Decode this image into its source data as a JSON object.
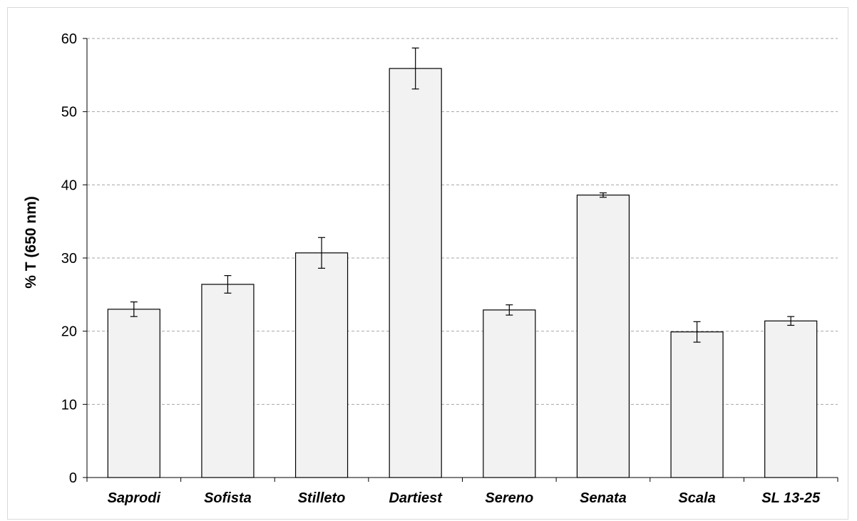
{
  "chart_data": {
    "type": "bar",
    "title": "",
    "xlabel": "",
    "ylabel": "% T (650 nm)",
    "categories": [
      "Saprodi",
      "Sofista",
      "Stilleto",
      "Dartiest",
      "Sereno",
      "Senata",
      "Scala",
      "SL 13-25"
    ],
    "series": [
      {
        "values": [
          23.0,
          26.4,
          30.7,
          55.9,
          22.9,
          38.6,
          19.9,
          21.4
        ],
        "errors": [
          1.0,
          1.2,
          2.1,
          2.8,
          0.7,
          0.3,
          1.4,
          0.6
        ]
      }
    ],
    "ylim": [
      0,
      60
    ],
    "yticks": [
      0,
      10,
      20,
      30,
      40,
      50,
      60
    ],
    "grid": true,
    "legend": "none",
    "colors": {
      "bar_fill": "#f2f2f2",
      "bar_stroke": "#000000",
      "grid": "#a6a6a6"
    }
  }
}
